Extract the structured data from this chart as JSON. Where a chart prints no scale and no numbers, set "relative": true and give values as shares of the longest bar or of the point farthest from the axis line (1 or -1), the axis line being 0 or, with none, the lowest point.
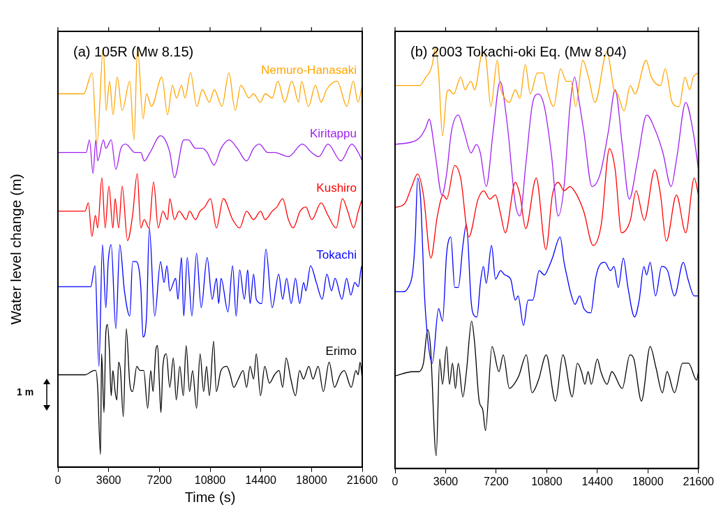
{
  "chart_data": [
    {
      "type": "line",
      "title": "(a) 105R (Mw 8.15)",
      "xlabel": "Time (s)",
      "ylabel": "Water level change (m)",
      "relative": true,
      "marker": "none",
      "xlim": [
        0,
        21600
      ],
      "xticks": [
        0,
        3600,
        7200,
        10800,
        14400,
        18000,
        21600
      ],
      "annotations": [
        "1 m"
      ],
      "series": [
        {
          "name": "Nemuro-Hanasaki",
          "color": "#ffa500",
          "x": [
            0,
            1830,
            2430,
            2770,
            3220,
            3420,
            3670,
            3910,
            4210,
            4560,
            5100,
            5400,
            5650,
            6040,
            6290,
            6640,
            7380,
            7780,
            8130,
            8420,
            8770,
            9020,
            9410,
            9860,
            10250,
            10750,
            11100,
            11640,
            12140,
            12580,
            12980,
            13570,
            13870,
            14370,
            14710,
            15210,
            15610,
            16100,
            16600,
            17090,
            17290,
            17780,
            18280,
            18680,
            19070,
            19820,
            20510,
            20960,
            21300,
            21600
          ],
          "values": [
            0.89,
            0.89,
            0.94,
            0.77,
            1.0,
            0.85,
            0.92,
            0.84,
            0.93,
            0.85,
            0.92,
            0.78,
            1.0,
            0.83,
            0.89,
            0.86,
            0.93,
            0.84,
            0.91,
            0.88,
            0.91,
            0.88,
            0.94,
            0.86,
            0.9,
            0.87,
            0.9,
            0.86,
            0.94,
            0.85,
            0.91,
            0.88,
            0.89,
            0.87,
            0.89,
            0.88,
            0.92,
            0.87,
            0.92,
            0.87,
            0.92,
            0.86,
            0.91,
            0.87,
            0.9,
            0.92,
            0.86,
            0.92,
            0.87,
            0.91
          ]
        },
        {
          "name": "Kiritappu",
          "color": "#a020f0",
          "x": [
            0,
            2000,
            2240,
            2490,
            2690,
            2820,
            3230,
            3400,
            3780,
            4110,
            4470,
            4810,
            5460,
            5880,
            6130,
            6540,
            7280,
            7610,
            7940,
            8270,
            8930,
            9260,
            9760,
            10250,
            10590,
            11080,
            11580,
            12150,
            12730,
            13390,
            13890,
            14300,
            14880,
            15380,
            16360,
            17350,
            18010,
            18510,
            19170,
            20080,
            20860,
            21320,
            21600
          ],
          "values": [
            0.75,
            0.75,
            0.78,
            0.7,
            0.78,
            0.73,
            0.78,
            0.76,
            0.78,
            0.71,
            0.76,
            0.77,
            0.75,
            0.75,
            0.73,
            0.75,
            0.79,
            0.78,
            0.75,
            0.69,
            0.78,
            0.78,
            0.76,
            0.76,
            0.75,
            0.72,
            0.76,
            0.78,
            0.76,
            0.73,
            0.76,
            0.77,
            0.75,
            0.75,
            0.74,
            0.77,
            0.75,
            0.74,
            0.77,
            0.73,
            0.77,
            0.75,
            0.73
          ]
        },
        {
          "name": "Kushiro",
          "color": "#ff0000",
          "x": [
            0,
            1920,
            2160,
            2410,
            2660,
            2820,
            3120,
            3350,
            3620,
            3900,
            4060,
            4310,
            4560,
            4940,
            5300,
            5630,
            5880,
            6130,
            6460,
            6790,
            7120,
            7450,
            7780,
            7940,
            8270,
            8610,
            9100,
            9350,
            9760,
            10090,
            10420,
            10830,
            11250,
            11740,
            12400,
            12900,
            13390,
            13890,
            14380,
            14710,
            15210,
            15540,
            15950,
            16360,
            16700,
            17190,
            17600,
            18020,
            18680,
            19170,
            19750,
            20200,
            20570,
            20990,
            21320,
            21600
          ],
          "values": [
            0.61,
            0.61,
            0.63,
            0.55,
            0.6,
            0.57,
            0.69,
            0.57,
            0.67,
            0.57,
            0.64,
            0.57,
            0.67,
            0.54,
            0.6,
            0.7,
            0.57,
            0.59,
            0.57,
            0.68,
            0.57,
            0.61,
            0.59,
            0.64,
            0.59,
            0.61,
            0.59,
            0.61,
            0.59,
            0.61,
            0.62,
            0.64,
            0.57,
            0.64,
            0.59,
            0.57,
            0.61,
            0.59,
            0.61,
            0.59,
            0.61,
            0.62,
            0.64,
            0.59,
            0.57,
            0.61,
            0.62,
            0.59,
            0.63,
            0.6,
            0.57,
            0.64,
            0.61,
            0.57,
            0.61,
            0.64
          ]
        },
        {
          "name": "Tokachi",
          "color": "#0000ff",
          "x": [
            0,
            2330,
            2630,
            2910,
            3160,
            3400,
            3570,
            3780,
            4110,
            4390,
            4720,
            5100,
            5300,
            5550,
            5880,
            6040,
            6290,
            6490,
            6870,
            7280,
            7530,
            7740,
            7940,
            8360,
            8520,
            8770,
            8930,
            9180,
            9510,
            9840,
            10170,
            10590,
            10950,
            11250,
            11410,
            11580,
            12070,
            12400,
            12650,
            12900,
            13230,
            13470,
            13640,
            13890,
            14080,
            14470,
            14760,
            15210,
            15670,
            15950,
            16230,
            16560,
            16860,
            17160,
            17440,
            17600,
            17930,
            18340,
            18760,
            19090,
            19420,
            19670,
            20160,
            20490,
            20790,
            21070,
            21320,
            21570,
            21600
          ],
          "values": [
            0.43,
            0.43,
            0.48,
            0.24,
            0.53,
            0.38,
            0.49,
            0.53,
            0.33,
            0.53,
            0.42,
            0.36,
            0.49,
            0.49,
            0.43,
            0.31,
            0.36,
            0.57,
            0.36,
            0.49,
            0.44,
            0.48,
            0.42,
            0.45,
            0.4,
            0.5,
            0.36,
            0.5,
            0.36,
            0.51,
            0.38,
            0.5,
            0.4,
            0.45,
            0.39,
            0.45,
            0.37,
            0.48,
            0.36,
            0.47,
            0.4,
            0.47,
            0.39,
            0.46,
            0.4,
            0.39,
            0.52,
            0.38,
            0.46,
            0.4,
            0.45,
            0.39,
            0.45,
            0.39,
            0.44,
            0.42,
            0.48,
            0.44,
            0.4,
            0.46,
            0.42,
            0.45,
            0.4,
            0.45,
            0.41,
            0.44,
            0.43,
            0.48,
            0.46
          ]
        },
        {
          "name": "Erimo",
          "color": "#000000",
          "x": [
            0,
            1920,
            2580,
            2690,
            2820,
            3020,
            3100,
            3270,
            3400,
            3520,
            3650,
            3780,
            3900,
            4060,
            4180,
            4310,
            4440,
            4640,
            4850,
            5100,
            5300,
            5600,
            5830,
            6090,
            6370,
            6590,
            6750,
            6950,
            7070,
            7200,
            7310,
            7450,
            7690,
            7940,
            8190,
            8400,
            8650,
            8900,
            9100,
            9340,
            9560,
            9840,
            10090,
            10340,
            10550,
            10750,
            11050,
            11240,
            11570,
            11990,
            12230,
            12480,
            12810,
            13140,
            13390,
            13640,
            13890,
            14080,
            14380,
            14680,
            15010,
            15370,
            15700,
            15950,
            16200,
            16530,
            16860,
            17150,
            17430,
            17810,
            18100,
            18470,
            18840,
            19250,
            19630,
            20030,
            20320,
            20820,
            21150,
            21310,
            21450,
            21600
          ],
          "values": [
            0.22,
            0.22,
            0.23,
            0.23,
            0.19,
            0.03,
            0.27,
            0.13,
            0.32,
            0.34,
            0.28,
            0.17,
            0.23,
            0.18,
            0.16,
            0.25,
            0.23,
            0.12,
            0.33,
            0.2,
            0.18,
            0.24,
            0.23,
            0.23,
            0.14,
            0.23,
            0.18,
            0.28,
            0.29,
            0.2,
            0.13,
            0.24,
            0.27,
            0.19,
            0.26,
            0.16,
            0.24,
            0.17,
            0.29,
            0.18,
            0.23,
            0.14,
            0.27,
            0.18,
            0.24,
            0.17,
            0.3,
            0.18,
            0.23,
            0.24,
            0.22,
            0.19,
            0.21,
            0.23,
            0.19,
            0.24,
            0.21,
            0.27,
            0.17,
            0.24,
            0.2,
            0.22,
            0.23,
            0.19,
            0.26,
            0.21,
            0.17,
            0.23,
            0.21,
            0.24,
            0.21,
            0.24,
            0.18,
            0.25,
            0.19,
            0.22,
            0.23,
            0.19,
            0.23,
            0.22,
            0.25,
            0.21
          ]
        }
      ]
    },
    {
      "type": "line",
      "title": "(b) 2003 Tokachi-oki Eq. (Mw 8.04)",
      "relative": true,
      "marker": "none",
      "xlim": [
        0,
        21600
      ],
      "xticks": [
        0,
        3600,
        7200,
        10800,
        14400,
        18000,
        21600
      ],
      "series": [
        {
          "color": "#ffa500",
          "x": [
            0,
            1770,
            2190,
            2430,
            2650,
            2880,
            3100,
            3380,
            3670,
            3840,
            4170,
            4670,
            5000,
            5160,
            5410,
            5660,
            6240,
            6490,
            6820,
            7280,
            7480,
            7810,
            8140,
            8560,
            8890,
            9270,
            9630,
            10130,
            10540,
            10820,
            11290,
            11780,
            12200,
            12530,
            12860,
            13360,
            13770,
            14230,
            15090,
            15590,
            15840,
            16300,
            16750,
            17080,
            17870,
            18240,
            18900,
            19230,
            19730,
            20220,
            20640,
            20970,
            21220,
            21600
          ],
          "values": [
            0.91,
            0.91,
            0.93,
            0.94,
            0.96,
            1.0,
            0.94,
            0.79,
            0.89,
            0.9,
            0.89,
            0.93,
            0.9,
            0.91,
            0.92,
            0.9,
            0.99,
            0.97,
            0.86,
            0.97,
            0.91,
            0.88,
            0.87,
            0.9,
            0.88,
            0.96,
            0.89,
            0.94,
            0.94,
            0.9,
            0.86,
            0.95,
            0.92,
            0.92,
            0.86,
            0.97,
            0.93,
            0.87,
            0.99,
            0.9,
            0.89,
            0.85,
            0.91,
            0.89,
            0.97,
            0.93,
            0.91,
            0.95,
            0.87,
            0.86,
            0.93,
            0.9,
            0.93,
            0.94
          ]
        },
        {
          "color": "#a020f0",
          "x": [
            0,
            1520,
            1850,
            2190,
            2430,
            2850,
            3340,
            3670,
            4010,
            4500,
            4920,
            5410,
            5790,
            6070,
            6490,
            6980,
            7480,
            7980,
            8560,
            8890,
            9300,
            9800,
            10210,
            10630,
            11120,
            11620,
            12030,
            12450,
            12780,
            13110,
            13440,
            14020,
            14600,
            15180,
            15670,
            16170,
            16670,
            17250,
            17910,
            18570,
            19070,
            19650,
            20060,
            20690,
            21220,
            21600
          ],
          "values": [
            0.77,
            0.78,
            0.79,
            0.81,
            0.83,
            0.75,
            0.65,
            0.7,
            0.8,
            0.84,
            0.8,
            0.75,
            0.77,
            0.75,
            0.67,
            0.8,
            0.92,
            0.82,
            0.63,
            0.6,
            0.72,
            0.87,
            0.89,
            0.86,
            0.75,
            0.6,
            0.67,
            0.86,
            0.93,
            0.87,
            0.8,
            0.67,
            0.7,
            0.8,
            0.9,
            0.77,
            0.64,
            0.73,
            0.84,
            0.8,
            0.75,
            0.67,
            0.74,
            0.87,
            0.8,
            0.71
          ]
        },
        {
          "color": "#ff0000",
          "x": [
            0,
            700,
            1190,
            1610,
            2020,
            2550,
            3010,
            3430,
            3670,
            4250,
            4670,
            5250,
            5910,
            6320,
            6740,
            7150,
            7480,
            7850,
            8560,
            8890,
            9300,
            10050,
            10740,
            11200,
            11620,
            12030,
            12450,
            12940,
            13440,
            14100,
            14680,
            15260,
            15670,
            16120,
            16750,
            17160,
            17740,
            18490,
            18900,
            19310,
            20030,
            20690,
            21300,
            21600
          ],
          "values": [
            0.62,
            0.63,
            0.67,
            0.7,
            0.65,
            0.5,
            0.6,
            0.65,
            0.64,
            0.72,
            0.69,
            0.55,
            0.64,
            0.66,
            0.64,
            0.65,
            0.61,
            0.56,
            0.68,
            0.65,
            0.57,
            0.69,
            0.52,
            0.65,
            0.68,
            0.66,
            0.67,
            0.65,
            0.61,
            0.53,
            0.58,
            0.76,
            0.71,
            0.56,
            0.59,
            0.66,
            0.59,
            0.71,
            0.65,
            0.54,
            0.65,
            0.56,
            0.69,
            0.65
          ]
        },
        {
          "color": "#0000ff",
          "x": [
            0,
            530,
            940,
            1270,
            1440,
            1610,
            1820,
            2100,
            2350,
            2650,
            3100,
            3380,
            3670,
            3970,
            4250,
            4500,
            4830,
            5080,
            5410,
            5530,
            5830,
            6070,
            6290,
            6490,
            6870,
            7150,
            7510,
            7810,
            8230,
            8560,
            8760,
            9140,
            9470,
            9800,
            10260,
            10630,
            10960,
            11200,
            11750,
            12030,
            12280,
            12480,
            12810,
            13140,
            13440,
            13940,
            14270,
            14510,
            14930,
            15340,
            15590,
            15890,
            16250,
            16580,
            17050,
            17380,
            17710,
            17910,
            18160,
            18540,
            18980,
            19400,
            19890,
            20520,
            20850,
            21300,
            21600
          ],
          "values": [
            0.42,
            0.42,
            0.43,
            0.47,
            0.55,
            0.69,
            0.64,
            0.41,
            0.3,
            0.25,
            0.38,
            0.35,
            0.51,
            0.55,
            0.43,
            0.43,
            0.53,
            0.58,
            0.4,
            0.37,
            0.36,
            0.44,
            0.48,
            0.44,
            0.53,
            0.45,
            0.47,
            0.46,
            0.45,
            0.4,
            0.41,
            0.34,
            0.4,
            0.4,
            0.47,
            0.46,
            0.48,
            0.5,
            0.55,
            0.49,
            0.45,
            0.42,
            0.39,
            0.41,
            0.38,
            0.37,
            0.45,
            0.48,
            0.49,
            0.47,
            0.48,
            0.43,
            0.5,
            0.43,
            0.36,
            0.4,
            0.48,
            0.46,
            0.49,
            0.41,
            0.48,
            0.47,
            0.41,
            0.49,
            0.45,
            0.41,
            0.41
          ]
        },
        {
          "color": "#000000",
          "x": [
            0,
            1270,
            1690,
            2020,
            2320,
            2520,
            2930,
            3180,
            3380,
            3670,
            3870,
            4090,
            4300,
            4500,
            4830,
            5080,
            5450,
            5660,
            5990,
            6240,
            6440,
            6900,
            7400,
            7700,
            8140,
            8470,
            8810,
            9350,
            9750,
            10210,
            10760,
            11420,
            11950,
            12610,
            12980,
            13270,
            13520,
            13740,
            13970,
            14400,
            14650,
            15090,
            15430,
            16170,
            16720,
            17000,
            17540,
            18160,
            18570,
            19030,
            19360,
            19890,
            20470,
            20890,
            21470,
            21600
          ],
          "values": [
            0.22,
            0.23,
            0.23,
            0.25,
            0.33,
            0.29,
            0.03,
            0.26,
            0.2,
            0.29,
            0.2,
            0.25,
            0.19,
            0.25,
            0.17,
            0.23,
            0.35,
            0.3,
            0.16,
            0.14,
            0.09,
            0.29,
            0.23,
            0.27,
            0.19,
            0.2,
            0.22,
            0.27,
            0.18,
            0.21,
            0.27,
            0.16,
            0.27,
            0.17,
            0.25,
            0.23,
            0.2,
            0.23,
            0.2,
            0.26,
            0.23,
            0.2,
            0.23,
            0.19,
            0.27,
            0.26,
            0.16,
            0.29,
            0.24,
            0.18,
            0.23,
            0.18,
            0.25,
            0.25,
            0.21,
            0.23
          ]
        }
      ]
    }
  ]
}
